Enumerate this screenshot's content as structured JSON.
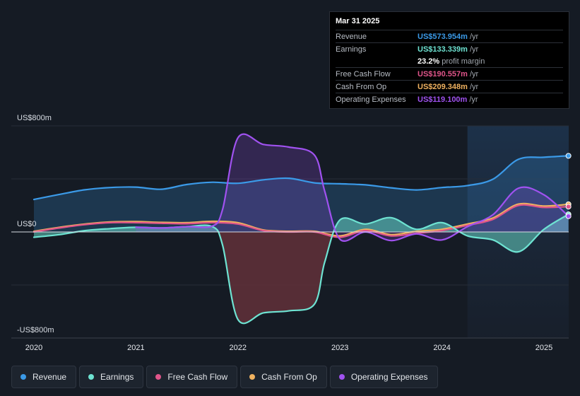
{
  "tooltip": {
    "date": "Mar 31 2025",
    "rows": [
      {
        "label": "Revenue",
        "value": "US$573.954m",
        "unit": "/yr",
        "color": "#3b9ae8"
      },
      {
        "label": "Earnings",
        "value": "US$133.339m",
        "unit": "/yr",
        "color": "#6ee3d2"
      },
      {
        "margin_pct": "23.2%",
        "margin_text": "profit margin"
      },
      {
        "label": "Free Cash Flow",
        "value": "US$190.557m",
        "unit": "/yr",
        "color": "#e0558a"
      },
      {
        "label": "Cash From Op",
        "value": "US$209.348m",
        "unit": "/yr",
        "color": "#f0b260"
      },
      {
        "label": "Operating Expenses",
        "value": "US$119.100m",
        "unit": "/yr",
        "color": "#a052f0"
      }
    ]
  },
  "legend": [
    {
      "label": "Revenue",
      "color": "#3b9ae8"
    },
    {
      "label": "Earnings",
      "color": "#6ee3d2"
    },
    {
      "label": "Free Cash Flow",
      "color": "#e0558a"
    },
    {
      "label": "Cash From Op",
      "color": "#f0b260"
    },
    {
      "label": "Operating Expenses",
      "color": "#a052f0"
    }
  ],
  "chart_data": {
    "type": "area",
    "title": "",
    "units": "US$m",
    "y_axis_labels": {
      "top": "US$800m",
      "zero": "US$0",
      "bottom": "-US$800m"
    },
    "ylim": [
      -800,
      800
    ],
    "xlim": [
      2019.98,
      2025.24
    ],
    "forecast_start": 2024.25,
    "x_ticks": [
      2020,
      2021,
      2022,
      2023,
      2024,
      2025
    ],
    "x_tick_labels": [
      "2020",
      "2021",
      "2022",
      "2023",
      "2024",
      "2025"
    ],
    "series": [
      {
        "name": "Revenue",
        "color": "#3b9ae8",
        "fill": true,
        "x": [
          2020.0,
          2020.25,
          2020.5,
          2020.75,
          2021.0,
          2021.25,
          2021.5,
          2021.75,
          2022.0,
          2022.25,
          2022.5,
          2022.75,
          2023.0,
          2023.25,
          2023.5,
          2023.75,
          2024.0,
          2024.25,
          2024.5,
          2024.75,
          2025.0,
          2025.24
        ],
        "values": [
          245,
          283,
          318,
          335,
          338,
          322,
          358,
          375,
          367,
          393,
          405,
          370,
          363,
          355,
          333,
          317,
          335,
          350,
          398,
          548,
          563,
          574
        ]
      },
      {
        "name": "Earnings",
        "color": "#6ee3d2",
        "fill": true,
        "x": [
          2020.0,
          2020.25,
          2020.5,
          2020.75,
          2021.0,
          2021.25,
          2021.5,
          2021.75,
          2021.85,
          2022.0,
          2022.25,
          2022.5,
          2022.75,
          2022.85,
          2023.0,
          2023.25,
          2023.5,
          2023.75,
          2024.0,
          2024.25,
          2024.5,
          2024.75,
          2025.0,
          2025.24
        ],
        "values": [
          -40,
          -20,
          10,
          25,
          35,
          30,
          40,
          40,
          -100,
          -660,
          -610,
          -595,
          -545,
          -230,
          90,
          60,
          108,
          20,
          70,
          -30,
          -60,
          -150,
          20,
          133
        ]
      },
      {
        "name": "Free Cash Flow",
        "color": "#e0558a",
        "fill": false,
        "x": [
          2020.0,
          2020.25,
          2020.5,
          2020.75,
          2021.0,
          2021.25,
          2021.5,
          2021.75,
          2022.0,
          2022.25,
          2022.5,
          2022.75,
          2023.0,
          2023.25,
          2023.5,
          2023.75,
          2024.0,
          2024.25,
          2024.5,
          2024.75,
          2025.0,
          2025.24
        ],
        "values": [
          0,
          30,
          55,
          70,
          70,
          65,
          62,
          70,
          60,
          10,
          0,
          0,
          -40,
          10,
          -30,
          -10,
          10,
          50,
          95,
          200,
          185,
          191
        ]
      },
      {
        "name": "Cash From Op",
        "color": "#f0b260",
        "fill": false,
        "x": [
          2020.0,
          2020.25,
          2020.5,
          2020.75,
          2021.0,
          2021.25,
          2021.5,
          2021.75,
          2022.0,
          2022.25,
          2022.5,
          2022.75,
          2023.0,
          2023.25,
          2023.5,
          2023.75,
          2024.0,
          2024.25,
          2024.5,
          2024.75,
          2025.0,
          2025.24
        ],
        "values": [
          5,
          35,
          60,
          75,
          78,
          72,
          70,
          80,
          70,
          15,
          5,
          5,
          -30,
          20,
          -20,
          5,
          20,
          60,
          105,
          210,
          195,
          209
        ]
      },
      {
        "name": "Operating Expenses",
        "color": "#a052f0",
        "fill": true,
        "x": [
          2021.0,
          2021.25,
          2021.5,
          2021.75,
          2021.85,
          2022.0,
          2022.25,
          2022.5,
          2022.75,
          2022.85,
          2023.0,
          2023.25,
          2023.5,
          2023.75,
          2024.0,
          2024.25,
          2024.5,
          2024.75,
          2025.0,
          2025.24
        ],
        "values": [
          35,
          30,
          40,
          45,
          170,
          710,
          660,
          640,
          580,
          310,
          -55,
          0,
          -65,
          -15,
          -60,
          40,
          130,
          330,
          280,
          119
        ]
      }
    ]
  }
}
